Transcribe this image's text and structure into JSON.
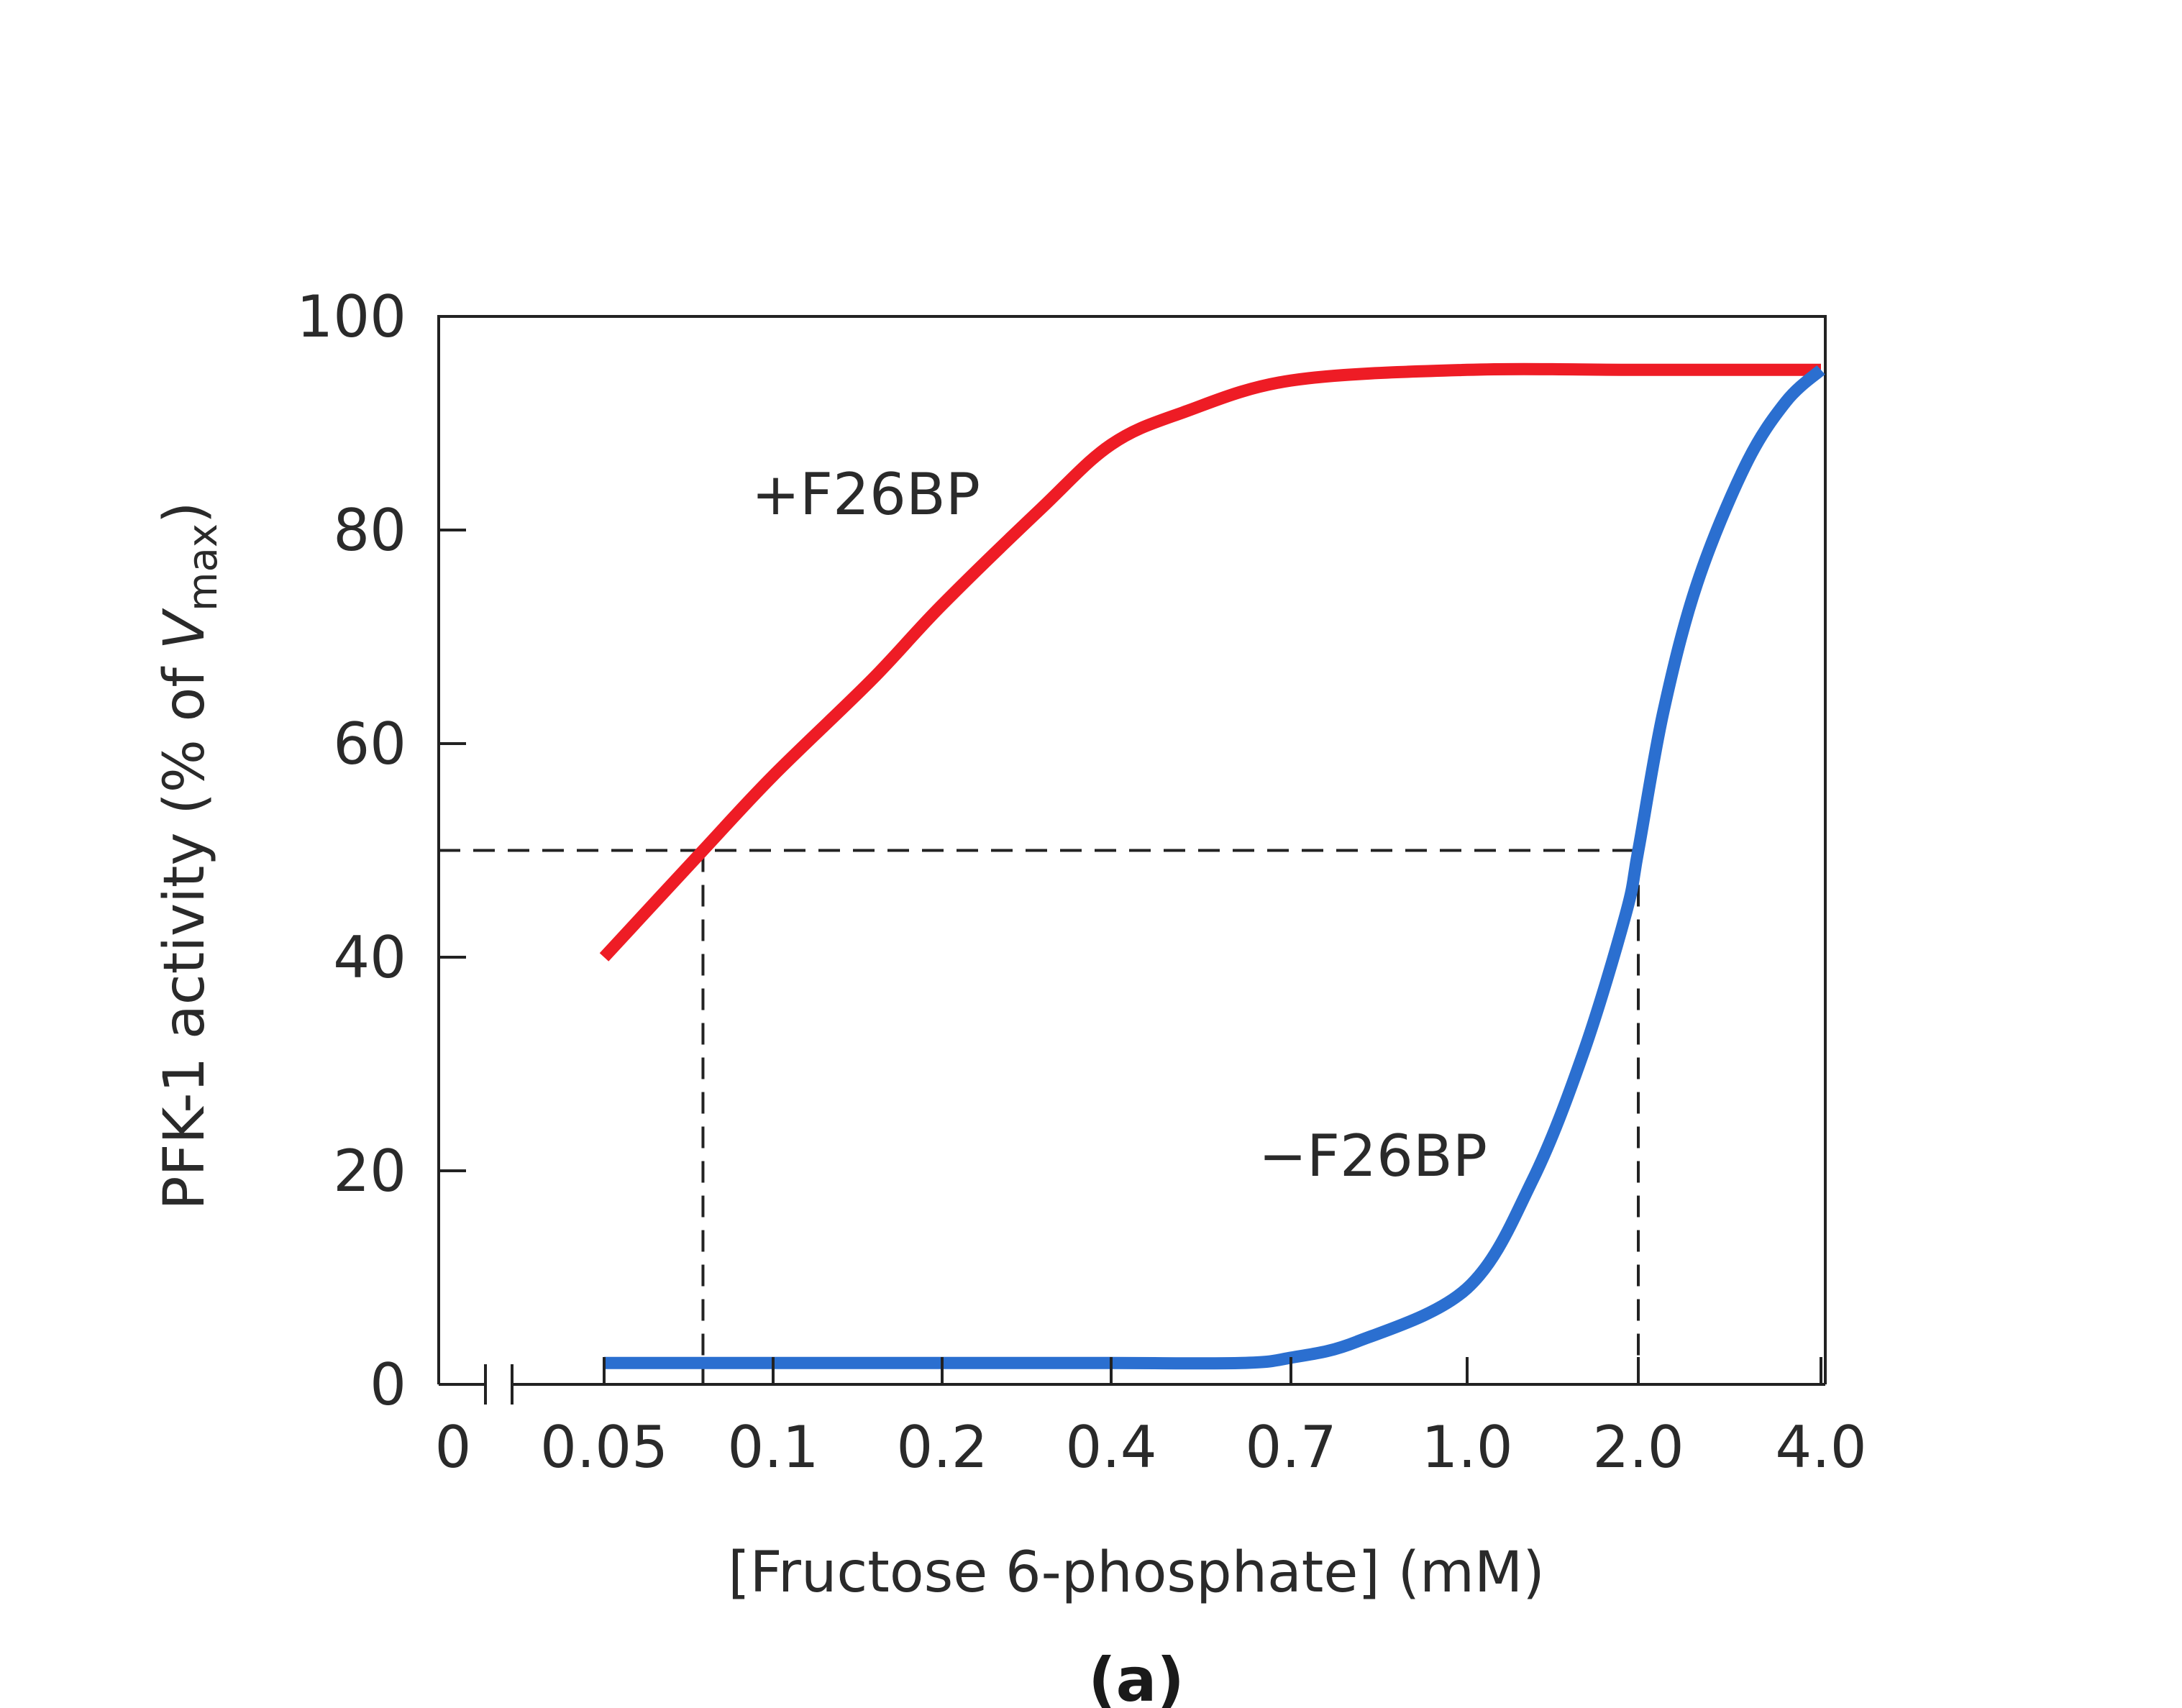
{
  "chart_data": {
    "type": "line",
    "title": "",
    "panel_label": "(a)",
    "xlabel": "[Fructose 6-phosphate] (mM)",
    "ylabel": {
      "main": "PFK-1 activity (% of ",
      "var": "V",
      "sub": "max",
      "close": ")"
    },
    "x_scale": "categorical-log",
    "x_ticks": [
      "0",
      "0.05",
      "0.1",
      "0.2",
      "0.4",
      "0.7",
      "1.0",
      "2.0",
      "4.0"
    ],
    "x_tick_values": [
      0,
      0.05,
      0.1,
      0.2,
      0.4,
      0.7,
      1.0,
      2.0,
      4.0
    ],
    "y_ticks": [
      "0",
      "20",
      "40",
      "60",
      "80",
      "100"
    ],
    "y_tick_values": [
      0,
      20,
      40,
      60,
      80,
      100
    ],
    "ylim": [
      0,
      100
    ],
    "axis_break": true,
    "grid": false,
    "series": [
      {
        "name": "+F26BP",
        "label": "+F26BP",
        "color": "#ee1c25",
        "x": [
          0.05,
          0.075,
          0.1,
          0.15,
          0.2,
          0.3,
          0.4,
          0.5,
          0.7,
          1.0,
          2.0,
          4.0
        ],
        "values": [
          40,
          50,
          57,
          66,
          73,
          82,
          88,
          91,
          94,
          95,
          95,
          95
        ]
      },
      {
        "name": "-F26BP",
        "label": "−F26BP",
        "color": "#2b6fd0",
        "x": [
          0.05,
          0.1,
          0.2,
          0.4,
          0.6,
          0.7,
          0.8,
          1.0,
          1.3,
          1.6,
          1.9,
          2.0,
          2.2,
          2.5,
          3.0,
          3.5,
          4.0
        ],
        "values": [
          2,
          2,
          2,
          2,
          2,
          2.5,
          4,
          9,
          19,
          31,
          44,
          50,
          63,
          75,
          86,
          92,
          95
        ]
      }
    ],
    "reference_lines": {
      "y": 50,
      "x_plus": 0.075,
      "x_minus": 2.0
    }
  }
}
